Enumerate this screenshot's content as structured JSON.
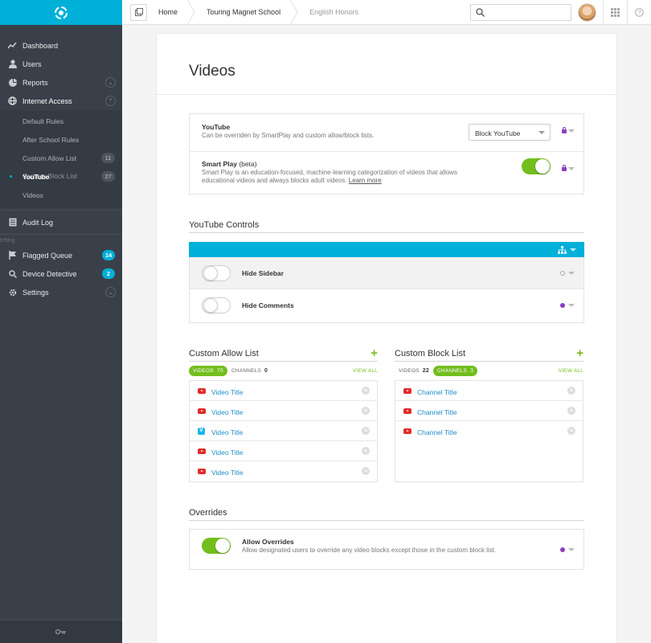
{
  "sidebar": {
    "items_top": [
      {
        "label": "Dashboard",
        "icon": "dashboard-icon"
      },
      {
        "label": "Users",
        "icon": "user-icon"
      },
      {
        "label": "Reports",
        "icon": "pie-chart-icon"
      },
      {
        "label": "Internet Access",
        "icon": "globe-icon"
      }
    ],
    "sub_items": [
      {
        "label": "Default Rules",
        "count": ""
      },
      {
        "label": "After School Rules",
        "count": ""
      },
      {
        "label": "Custom Allow List",
        "count": "11"
      },
      {
        "label": "YouTube",
        "count": "27"
      },
      {
        "label": "Videos",
        "count": ""
      }
    ],
    "sub_overlap_label": "Custom Block List",
    "audit_log": "Audit Log",
    "ghost_text": "tching",
    "items_bottom": [
      {
        "label": "Flagged Queue",
        "badge": "14"
      },
      {
        "label": "Device Detective",
        "badge": "2"
      },
      {
        "label": "Settings",
        "badge": ""
      }
    ]
  },
  "topbar": {
    "breadcrumbs": [
      "Home",
      "Touring Magnet School",
      "English Honors"
    ],
    "search_placeholder": ""
  },
  "page": {
    "title": "Videos"
  },
  "youtube_settings": {
    "youtube_title": "YouTube",
    "youtube_desc": "Can be overriden by SmartPlay and custom allow/block lists.",
    "youtube_select": "Block YouTube",
    "smartplay_title": "Smart Play",
    "smartplay_beta": "(beta)",
    "smartplay_desc": "Smart Play is an education-focused, machine-learning categorization of videos that allows educational videos and always blocks adult videos.",
    "learn_more": "Learn more",
    "smartplay_on": true
  },
  "youtube_controls": {
    "title": "YouTube Controls",
    "rows": [
      {
        "label": "Hide Sidebar",
        "on": false,
        "status": "unset"
      },
      {
        "label": "Hide Comments",
        "on": false,
        "status": "purple"
      }
    ]
  },
  "allow_list": {
    "title": "Custom Allow List",
    "tab_videos": "VIDEOS",
    "tab_videos_count": "76",
    "tab_channels": "CHANNELS",
    "tab_channels_count": "0",
    "view_all": "VIEW ALL",
    "items": [
      {
        "title": "Video Title",
        "source": "youtube"
      },
      {
        "title": "Video Title",
        "source": "youtube"
      },
      {
        "title": "Video Title",
        "source": "vimeo"
      },
      {
        "title": "Video Title",
        "source": "youtube"
      },
      {
        "title": "Video Title",
        "source": "youtube"
      }
    ]
  },
  "block_list": {
    "title": "Custom Block List",
    "tab_videos": "VIDEOS",
    "tab_videos_count": "22",
    "tab_channels": "CHANNELS",
    "tab_channels_count": "3",
    "view_all": "VIEW ALL",
    "items": [
      {
        "title": "Channel Title",
        "source": "youtube"
      },
      {
        "title": "Channel Title",
        "source": "youtube"
      },
      {
        "title": "Channel Title",
        "source": "youtube"
      }
    ]
  },
  "overrides": {
    "title": "Overrides",
    "row_title": "Allow Overrides",
    "row_desc": "Allow designated users to override any video blocks except those in the custom block list.",
    "on": true
  },
  "colors": {
    "accent": "#00b0d8",
    "green": "#72be1e",
    "purple": "#8a3fc0",
    "sidebar": "#3a4049",
    "link": "#1f8ec9"
  }
}
